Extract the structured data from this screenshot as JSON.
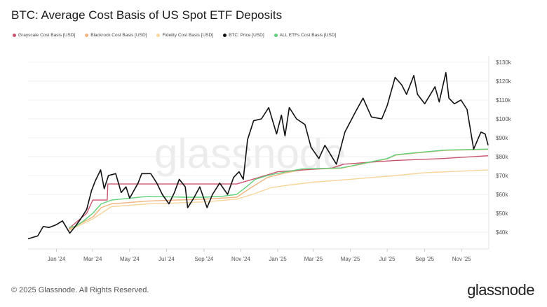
{
  "title": "BTC: Average Cost Basis of US Spot ETF Deposits",
  "footer": "© 2025 Glassnode. All Rights Reserved.",
  "brand": "glassnode",
  "watermark": "glassnode",
  "chart_data": {
    "type": "line",
    "title": "BTC: Average Cost Basis of US Spot ETF Deposits",
    "xlabel": "",
    "ylabel": "",
    "ylim": [
      35000,
      132000
    ],
    "y_scale": "linear",
    "y_axis_position": "right",
    "y_ticks": [
      "$40k",
      "$50k",
      "$60k",
      "$70k",
      "$80k",
      "$90k",
      "$100k",
      "$110k",
      "$120k",
      "$130k"
    ],
    "y_tick_values": [
      40000,
      50000,
      60000,
      70000,
      80000,
      90000,
      100000,
      110000,
      120000,
      130000
    ],
    "x_ticks": [
      "Jan '24",
      "Mar '24",
      "May '24",
      "Jul '24",
      "Sep '24",
      "Nov '24",
      "Jan '25",
      "Mar '25",
      "May '25",
      "Jul '25",
      "Sep '25",
      "Nov '25"
    ],
    "x_tick_dates": [
      "2024-01-01",
      "2024-03-01",
      "2024-05-01",
      "2024-07-01",
      "2024-09-01",
      "2024-11-01",
      "2025-01-01",
      "2025-03-01",
      "2025-05-01",
      "2025-07-01",
      "2025-09-01",
      "2025-11-01"
    ],
    "xlim": [
      "2023-11-15",
      "2025-12-16"
    ],
    "grid": true,
    "legend_position": "top-left",
    "series": [
      {
        "name": "Grayscale Cost Basis [USD]",
        "color": "#c9546e",
        "points": [
          [
            "2024-01-22",
            42000
          ],
          [
            "2024-02-20",
            50000
          ],
          [
            "2024-03-01",
            57000
          ],
          [
            "2024-03-25",
            57000
          ],
          [
            "2024-03-26",
            65500
          ],
          [
            "2024-07-01",
            65500
          ],
          [
            "2024-10-25",
            65500
          ],
          [
            "2024-11-10",
            67000
          ],
          [
            "2024-12-01",
            69000
          ],
          [
            "2025-01-01",
            72000
          ],
          [
            "2025-04-01",
            74000
          ],
          [
            "2025-04-20",
            76000
          ],
          [
            "2025-06-01",
            77000
          ],
          [
            "2025-07-15",
            78000
          ],
          [
            "2025-10-01",
            79000
          ],
          [
            "2025-12-15",
            80500
          ]
        ]
      },
      {
        "name": "Blackrock Cost Basis [USD]",
        "color": "#f2b47e",
        "points": [
          [
            "2024-01-22",
            41500
          ],
          [
            "2024-03-01",
            48000
          ],
          [
            "2024-03-15",
            53000
          ],
          [
            "2024-04-01",
            55000
          ],
          [
            "2024-06-01",
            56500
          ],
          [
            "2024-09-01",
            57500
          ],
          [
            "2024-10-25",
            58500
          ],
          [
            "2024-11-15",
            63000
          ],
          [
            "2024-12-15",
            69000
          ],
          [
            "2025-01-15",
            71500
          ],
          [
            "2025-02-15",
            73300
          ],
          [
            "2025-04-15",
            73800
          ],
          [
            "2025-05-01",
            74800
          ],
          [
            "2025-07-01",
            78800
          ],
          [
            "2025-07-15",
            80800
          ],
          [
            "2025-08-15",
            81800
          ],
          [
            "2025-10-05",
            83300
          ],
          [
            "2025-12-15",
            83800
          ]
        ]
      },
      {
        "name": "Fidelity Cost Basis [USD]",
        "color": "#f7d59b",
        "points": [
          [
            "2024-01-22",
            41000
          ],
          [
            "2024-03-01",
            47000
          ],
          [
            "2024-04-01",
            53500
          ],
          [
            "2024-06-01",
            55000
          ],
          [
            "2024-09-01",
            56000
          ],
          [
            "2024-10-25",
            57500
          ],
          [
            "2024-11-20",
            60000
          ],
          [
            "2024-12-20",
            63500
          ],
          [
            "2025-01-20",
            65000
          ],
          [
            "2025-03-01",
            66500
          ],
          [
            "2025-05-01",
            68000
          ],
          [
            "2025-07-15",
            70000
          ],
          [
            "2025-09-01",
            71500
          ],
          [
            "2025-12-15",
            73000
          ]
        ]
      },
      {
        "name": "BTC: Price [USD]",
        "color": "#111111",
        "points": [
          [
            "2023-11-15",
            36500
          ],
          [
            "2023-12-01",
            38000
          ],
          [
            "2023-12-10",
            43000
          ],
          [
            "2023-12-20",
            42500
          ],
          [
            "2024-01-01",
            44000
          ],
          [
            "2024-01-11",
            46000
          ],
          [
            "2024-01-23",
            39500
          ],
          [
            "2024-02-01",
            43000
          ],
          [
            "2024-02-10",
            47000
          ],
          [
            "2024-02-20",
            52000
          ],
          [
            "2024-02-28",
            62000
          ],
          [
            "2024-03-05",
            67000
          ],
          [
            "2024-03-14",
            73000
          ],
          [
            "2024-03-20",
            63000
          ],
          [
            "2024-03-27",
            70000
          ],
          [
            "2024-04-08",
            71000
          ],
          [
            "2024-04-17",
            61000
          ],
          [
            "2024-04-25",
            64000
          ],
          [
            "2024-05-01",
            58000
          ],
          [
            "2024-05-15",
            66000
          ],
          [
            "2024-05-21",
            71000
          ],
          [
            "2024-06-05",
            71000
          ],
          [
            "2024-06-15",
            66000
          ],
          [
            "2024-06-24",
            60000
          ],
          [
            "2024-07-05",
            55000
          ],
          [
            "2024-07-14",
            61000
          ],
          [
            "2024-07-22",
            68000
          ],
          [
            "2024-08-01",
            64000
          ],
          [
            "2024-08-05",
            53000
          ],
          [
            "2024-08-15",
            58000
          ],
          [
            "2024-08-25",
            64000
          ],
          [
            "2024-09-06",
            53000
          ],
          [
            "2024-09-15",
            60000
          ],
          [
            "2024-09-27",
            66000
          ],
          [
            "2024-10-10",
            60000
          ],
          [
            "2024-10-20",
            69000
          ],
          [
            "2024-10-29",
            72000
          ],
          [
            "2024-11-05",
            68000
          ],
          [
            "2024-11-12",
            89000
          ],
          [
            "2024-11-22",
            99000
          ],
          [
            "2024-12-05",
            100000
          ],
          [
            "2024-12-17",
            106000
          ],
          [
            "2024-12-30",
            92000
          ],
          [
            "2025-01-07",
            102000
          ],
          [
            "2025-01-13",
            91000
          ],
          [
            "2025-01-20",
            106000
          ],
          [
            "2025-02-01",
            100000
          ],
          [
            "2025-02-15",
            97000
          ],
          [
            "2025-02-25",
            85000
          ],
          [
            "2025-03-10",
            79000
          ],
          [
            "2025-03-20",
            86000
          ],
          [
            "2025-04-08",
            76000
          ],
          [
            "2025-04-22",
            93000
          ],
          [
            "2025-05-10",
            104000
          ],
          [
            "2025-05-22",
            111000
          ],
          [
            "2025-06-05",
            101000
          ],
          [
            "2025-06-22",
            100000
          ],
          [
            "2025-07-01",
            107000
          ],
          [
            "2025-07-14",
            122000
          ],
          [
            "2025-07-25",
            118000
          ],
          [
            "2025-08-02",
            113000
          ],
          [
            "2025-08-14",
            123000
          ],
          [
            "2025-08-20",
            113000
          ],
          [
            "2025-09-01",
            108000
          ],
          [
            "2025-09-18",
            117000
          ],
          [
            "2025-09-25",
            109000
          ],
          [
            "2025-10-06",
            124500
          ],
          [
            "2025-10-11",
            111000
          ],
          [
            "2025-10-20",
            108000
          ],
          [
            "2025-10-31",
            110000
          ],
          [
            "2025-11-10",
            105000
          ],
          [
            "2025-11-21",
            84000
          ],
          [
            "2025-12-03",
            93000
          ],
          [
            "2025-12-10",
            92000
          ],
          [
            "2025-12-15",
            86000
          ]
        ]
      },
      {
        "name": "ALL ETFs Cost Basis [USD]",
        "color": "#5ed17a",
        "points": [
          [
            "2024-01-22",
            42600
          ],
          [
            "2024-02-01",
            43000
          ],
          [
            "2024-02-15",
            46000
          ],
          [
            "2024-03-01",
            50000
          ],
          [
            "2024-03-15",
            55000
          ],
          [
            "2024-04-01",
            57000
          ],
          [
            "2024-05-01",
            58000
          ],
          [
            "2024-06-01",
            59000
          ],
          [
            "2024-08-01",
            58500
          ],
          [
            "2024-09-01",
            58500
          ],
          [
            "2024-10-01",
            59000
          ],
          [
            "2024-10-25",
            60000
          ],
          [
            "2024-11-10",
            64000
          ],
          [
            "2024-11-25",
            68000
          ],
          [
            "2024-12-15",
            70000
          ],
          [
            "2025-01-15",
            72000
          ],
          [
            "2025-02-10",
            73500
          ],
          [
            "2025-04-15",
            74000
          ],
          [
            "2025-05-01",
            75000
          ],
          [
            "2025-07-01",
            79000
          ],
          [
            "2025-07-15",
            81000
          ],
          [
            "2025-08-15",
            82000
          ],
          [
            "2025-10-05",
            83500
          ],
          [
            "2025-12-15",
            84000
          ]
        ]
      }
    ]
  }
}
